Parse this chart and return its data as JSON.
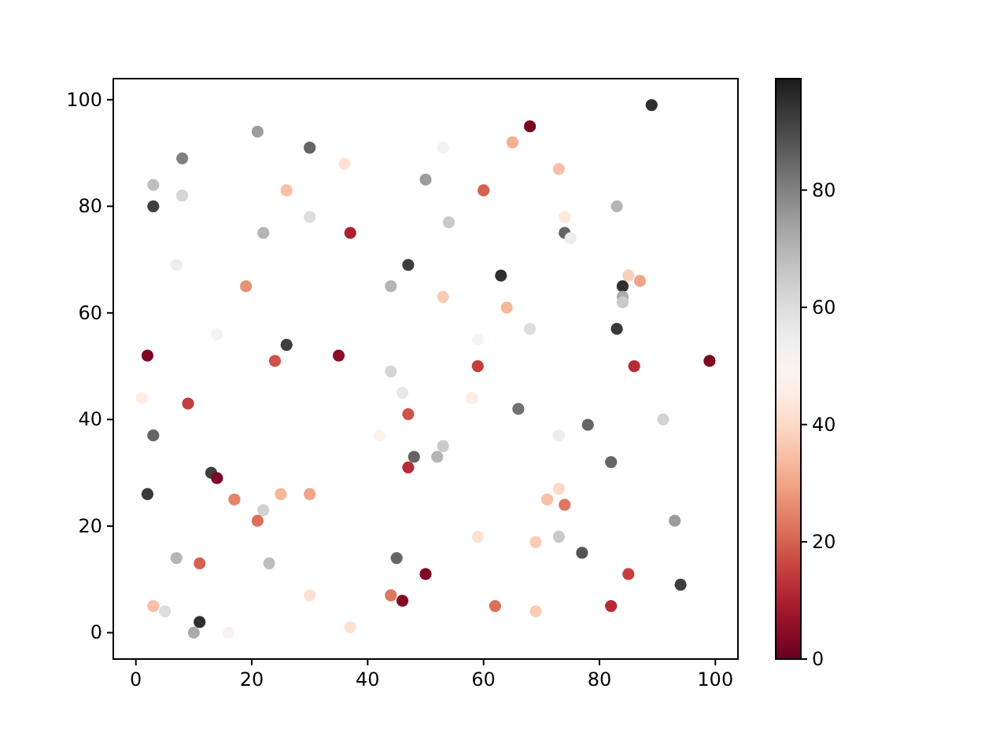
{
  "chart_data": {
    "type": "scatter",
    "xlim": [
      -3.9,
      103.9
    ],
    "ylim": [
      -4.95,
      103.95
    ],
    "xticks": [
      0,
      20,
      40,
      60,
      80,
      100
    ],
    "yticks": [
      0,
      20,
      40,
      60,
      80,
      100
    ],
    "clim": [
      0,
      99
    ],
    "cticks": [
      0,
      20,
      40,
      60,
      80
    ],
    "marker": "circle",
    "series": [
      {
        "x": [
          89,
          68,
          21,
          30,
          65,
          8,
          36,
          53,
          73,
          3,
          8,
          26,
          50,
          60,
          3,
          83,
          30,
          74,
          22,
          37,
          54,
          74,
          75,
          47,
          7,
          63,
          85,
          87,
          19,
          44,
          84,
          53,
          84,
          84,
          64,
          83,
          68,
          14,
          26,
          59,
          2,
          35,
          24,
          59,
          86,
          99,
          44,
          91,
          1,
          46,
          58,
          9,
          3,
          42,
          47,
          66,
          78,
          73,
          48,
          47,
          52,
          53,
          82,
          13,
          14,
          2,
          17,
          25,
          30,
          22,
          71,
          73,
          74,
          21,
          93,
          7,
          11,
          23,
          45,
          59,
          69,
          73,
          77,
          50,
          85,
          94,
          30,
          44,
          46,
          3,
          5,
          11,
          10,
          16,
          37,
          62,
          69,
          82
        ],
        "values": [
          99,
          95,
          94,
          91,
          92,
          89,
          88,
          91,
          87,
          84,
          82,
          83,
          85,
          83,
          80,
          80,
          78,
          78,
          75,
          75,
          77,
          75,
          74,
          69,
          69,
          67,
          67,
          66,
          65,
          65,
          65,
          63,
          63,
          62,
          61,
          57,
          57,
          56,
          54,
          55,
          52,
          52,
          51,
          50,
          50,
          51,
          49,
          40,
          44,
          45,
          44,
          43,
          37,
          37,
          41,
          42,
          39,
          37,
          33,
          31,
          33,
          35,
          32,
          30,
          29,
          26,
          25,
          26,
          26,
          23,
          25,
          27,
          24,
          21,
          21,
          14,
          13,
          13,
          14,
          18,
          17,
          18,
          15,
          11,
          11,
          9,
          7,
          7,
          6,
          5,
          4,
          2,
          0,
          0,
          1,
          5,
          4,
          5
        ],
        "cvalues": [
          95,
          2,
          75,
          85,
          32,
          80,
          42,
          52,
          35,
          68,
          62,
          35,
          75,
          20,
          92,
          70,
          60,
          44,
          70,
          10,
          65,
          85,
          55,
          92,
          55,
          95,
          38,
          30,
          27,
          70,
          95,
          37,
          72,
          65,
          33,
          93,
          60,
          52,
          92,
          50,
          3,
          5,
          18,
          15,
          12,
          3,
          62,
          63,
          45,
          57,
          45,
          15,
          85,
          48,
          18,
          83,
          85,
          55,
          85,
          12,
          70,
          65,
          85,
          92,
          3,
          93,
          25,
          33,
          30,
          63,
          35,
          40,
          23,
          22,
          75,
          70,
          20,
          68,
          85,
          42,
          37,
          65,
          88,
          3,
          15,
          92,
          42,
          23,
          4,
          35,
          60,
          95,
          72,
          52,
          42,
          22,
          37,
          12
        ]
      }
    ]
  }
}
